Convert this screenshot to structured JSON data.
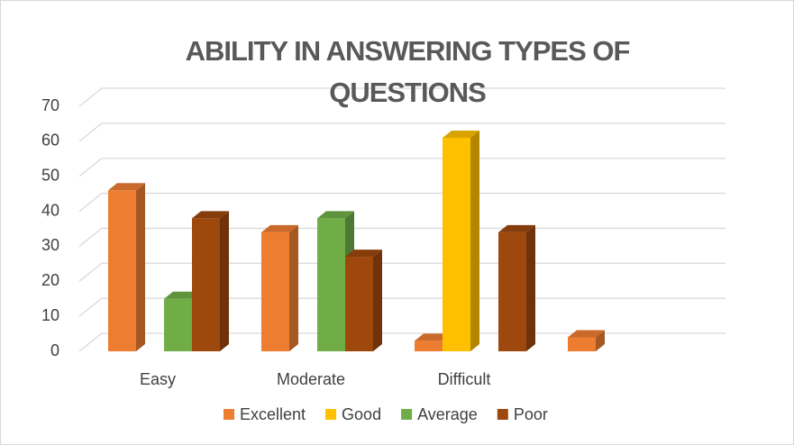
{
  "chart_data": {
    "type": "bar3d",
    "title": "ABILITY IN ANSWERING TYPES OF QUESTIONS",
    "categories": [
      "Easy",
      "Moderate",
      "Difficult",
      null
    ],
    "series": [
      {
        "name": "Excellent",
        "color": "#ed7d31",
        "values": [
          46,
          34,
          3,
          4
        ]
      },
      {
        "name": "Good",
        "color": "#ffc000",
        "values": [
          0,
          0,
          61,
          0
        ]
      },
      {
        "name": "Average",
        "color": "#70ad47",
        "values": [
          15,
          38,
          0,
          0
        ]
      },
      {
        "name": "Poor",
        "color": "#9e480e",
        "values": [
          38,
          27,
          34,
          0
        ]
      }
    ],
    "ylim": [
      0,
      70
    ],
    "yticks": [
      0,
      10,
      20,
      30,
      40,
      50,
      60,
      70
    ],
    "grid": true,
    "legend": "bottom"
  }
}
